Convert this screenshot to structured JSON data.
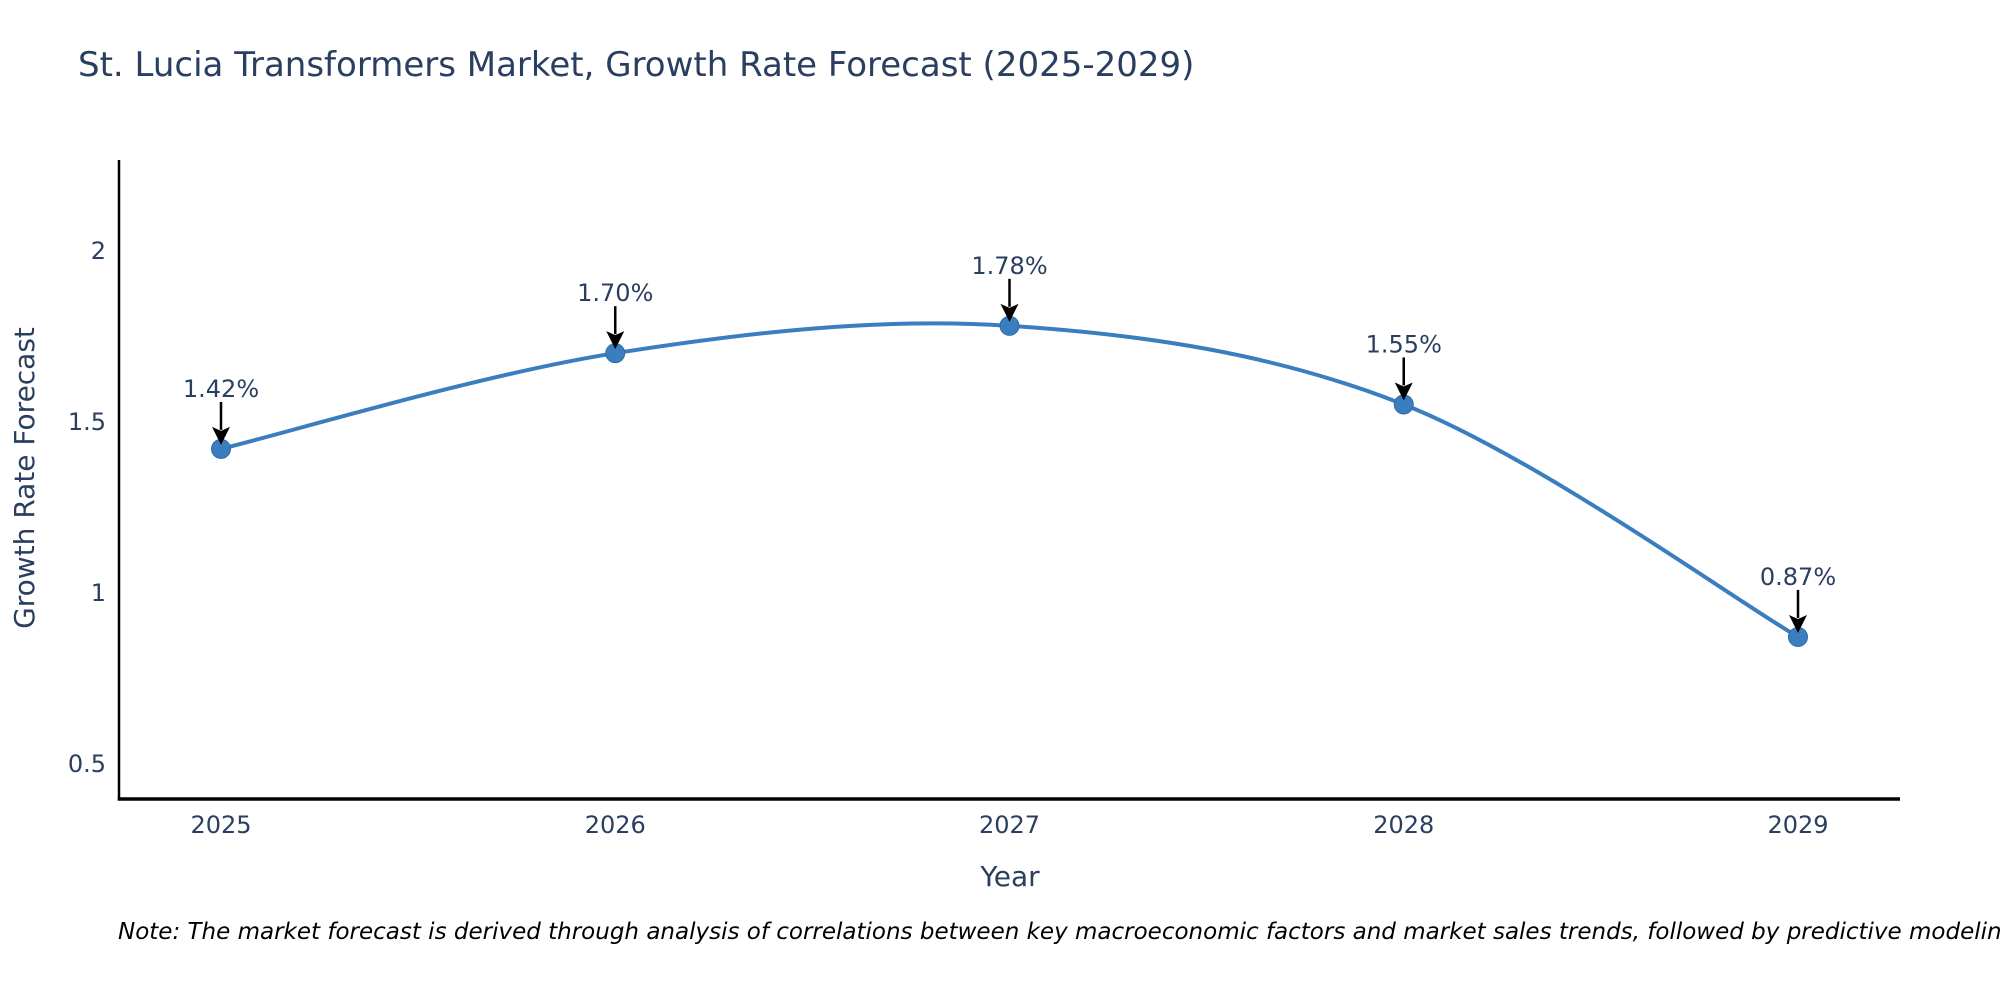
{
  "title": "St. Lucia Transformers Market, Growth Rate Forecast (2025-2029)",
  "note": "Note: The market forecast is derived through analysis of correlations between key macroeconomic factors and market sales trends, followed by predictive modeling to project future sales",
  "chart_data": {
    "type": "line",
    "line_shape": "spline",
    "markers": true,
    "title": "St. Lucia Transformers Market, Growth Rate Forecast (2025-2029)",
    "xlabel": "Year",
    "ylabel": "Growth Rate Forecast",
    "categories": [
      "2025",
      "2026",
      "2027",
      "2028",
      "2029"
    ],
    "values": [
      1.42,
      1.7,
      1.78,
      1.55,
      0.87
    ],
    "point_labels": [
      "1.42%",
      "1.70%",
      "1.78%",
      "1.55%",
      "0.87%"
    ],
    "yticks": [
      {
        "value": 0.5,
        "label": "0.5"
      },
      {
        "value": 1.0,
        "label": "1"
      },
      {
        "value": 1.5,
        "label": "1.5"
      },
      {
        "value": 2.0,
        "label": "2"
      }
    ],
    "ylim": [
      0.396,
      2.265
    ],
    "grid": false,
    "legend": false,
    "colors": {
      "line": "#3a7ebf",
      "marker_fill": "#3a7ebf",
      "marker_edge": "#2e6da4",
      "axis_line": "#000000",
      "text": "#2a3f5f",
      "annotation_arrow": "#000000",
      "background": "#ffffff"
    }
  }
}
